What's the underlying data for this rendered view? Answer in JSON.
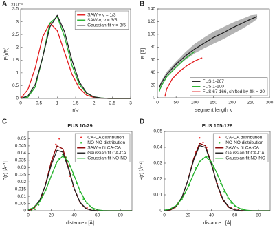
{
  "chart_data": [
    {
      "type": "line",
      "panel_label": "A",
      "x_label": "r/R",
      "y_label": "P(r/R)",
      "y_multiplier": "×10⁻³",
      "xlim": [
        0,
        3
      ],
      "xticks": [
        0,
        0.5,
        1,
        1.5,
        2,
        2.5,
        3
      ],
      "ylim": [
        0,
        3.5
      ],
      "yticks": [
        0,
        0.5,
        1,
        1.5,
        2,
        2.5,
        3,
        3.5
      ],
      "legend": "upper right",
      "x": [
        0,
        0.2,
        0.4,
        0.6,
        0.8,
        1.0,
        1.2,
        1.4,
        1.6,
        1.8,
        2.0,
        2.2,
        2.4,
        2.6,
        2.8,
        3.0
      ],
      "series": [
        {
          "name": "SAW-ν ν = 1/3",
          "color": "#e31a1c",
          "style": "line",
          "values": [
            0,
            0.35,
            1.2,
            2.4,
            2.95,
            2.65,
            1.8,
            0.95,
            0.4,
            0.13,
            0.04,
            0.01,
            0,
            0,
            0,
            0
          ]
        },
        {
          "name": "SAW-ν, ν = 3/5",
          "color": "#22b02a",
          "style": "line",
          "values": [
            0,
            0.05,
            0.45,
            1.6,
            2.95,
            3.2,
            2.4,
            1.3,
            0.55,
            0.2,
            0.06,
            0.02,
            0,
            0,
            0,
            0
          ]
        },
        {
          "name": "Gaussian fit ν = 3/5",
          "color": "#222222",
          "style": "line",
          "values": [
            0,
            0.1,
            0.55,
            1.6,
            2.8,
            3.25,
            2.6,
            1.5,
            0.65,
            0.22,
            0.06,
            0.015,
            0,
            0,
            0,
            0
          ]
        }
      ]
    },
    {
      "type": "line",
      "panel_label": "B",
      "x_label": "segment length k",
      "y_label": "R [Å]",
      "xlim": [
        0,
        300
      ],
      "xticks": [
        0,
        50,
        100,
        150,
        200,
        250,
        300
      ],
      "ylim": [
        0,
        140
      ],
      "yticks": [
        0,
        20,
        40,
        60,
        80,
        100,
        120,
        140
      ],
      "legend": "lower right",
      "band": {
        "color": "#b4b4b4",
        "x": [
          5,
          10,
          25,
          50,
          75,
          100,
          125,
          150,
          175,
          200,
          225,
          250,
          267
        ],
        "lower": [
          14,
          20,
          33,
          49,
          60,
          70,
          78,
          85,
          92,
          100,
          108,
          117,
          124
        ],
        "upper": [
          18,
          26,
          41,
          57,
          72,
          85,
          95,
          104,
          111,
          118,
          124,
          130,
          131
        ]
      },
      "series": [
        {
          "name": "FUS 1-267",
          "color": "#222222",
          "style": "line",
          "x": [
            5,
            10,
            25,
            50,
            75,
            100,
            125,
            150,
            175,
            200,
            225,
            250,
            267
          ],
          "values": [
            16,
            23,
            37,
            53,
            66,
            77,
            86,
            95,
            102,
            110,
            117,
            124,
            128
          ]
        },
        {
          "name": "FUS 1-100",
          "color": "#22b02a",
          "style": "line",
          "x": [
            5,
            10,
            25,
            50,
            75,
            100
          ],
          "values": [
            10,
            18,
            33,
            48,
            62,
            73
          ]
        },
        {
          "name": "FUS 67-166, shifted by Δk = 20",
          "color": "#e31a1c",
          "style": "line",
          "x": [
            20,
            25,
            40,
            60,
            80,
            100,
            120
          ],
          "values": [
            2,
            14,
            30,
            42,
            51,
            58,
            63
          ]
        }
      ]
    },
    {
      "type": "line",
      "panel_label": "C",
      "title": "FUS 10-29",
      "x_label": "distance r [Å]",
      "y_label": "P(r) [Å⁻¹]",
      "xlim": [
        0,
        90
      ],
      "xticks": [
        0,
        20,
        40,
        60,
        80
      ],
      "ylim": [
        0,
        0.055
      ],
      "yticks": [
        0,
        0.005,
        0.01,
        0.015,
        0.02,
        0.025,
        0.03,
        0.035,
        0.04,
        0.045,
        0.05
      ],
      "legend": "upper right",
      "series": [
        {
          "name": "CA-CA distribution",
          "color": "#f03232",
          "style": "markers",
          "x": [
            3,
            6,
            9,
            12,
            15,
            18,
            21,
            24,
            27,
            30,
            33,
            36,
            39,
            42,
            45,
            48,
            51,
            54,
            57,
            60
          ],
          "values": [
            0.001,
            0.003,
            0.006,
            0.011,
            0.019,
            0.027,
            0.036,
            0.046,
            0.05,
            0.041,
            0.035,
            0.024,
            0.017,
            0.011,
            0.006,
            0.003,
            0.002,
            0.001,
            0.0005,
            0
          ]
        },
        {
          "name": "NO-NO distribution",
          "color": "#33c233",
          "style": "markers",
          "x": [
            3,
            6,
            9,
            12,
            15,
            18,
            21,
            24,
            27,
            30,
            33,
            36,
            39,
            42,
            45,
            48,
            51,
            54,
            57,
            60
          ],
          "values": [
            0,
            0.001,
            0.004,
            0.009,
            0.014,
            0.02,
            0.026,
            0.032,
            0.036,
            0.039,
            0.037,
            0.031,
            0.025,
            0.019,
            0.013,
            0.008,
            0.005,
            0.003,
            0.001,
            0.0005
          ]
        },
        {
          "name": "SAW-ν fit CA-CA",
          "color": "#8b0000",
          "style": "line",
          "x": [
            0,
            5,
            10,
            15,
            20,
            25,
            30,
            35,
            40,
            45,
            50,
            55,
            60,
            65,
            70,
            75,
            80,
            85,
            90
          ],
          "values": [
            0,
            0.0015,
            0.0065,
            0.018,
            0.034,
            0.045,
            0.043,
            0.03,
            0.015,
            0.0055,
            0.0015,
            0.0003,
            0,
            0,
            0,
            0,
            0,
            0,
            0
          ]
        },
        {
          "name": "Gaussian fit CA-CA",
          "color": "#222222",
          "style": "line",
          "x": [
            0,
            5,
            10,
            15,
            20,
            25,
            30,
            35,
            40,
            45,
            50,
            55,
            60,
            65,
            70,
            75,
            80,
            85,
            90
          ],
          "values": [
            0.0005,
            0.0022,
            0.0072,
            0.0177,
            0.0318,
            0.0419,
            0.0407,
            0.029,
            0.0152,
            0.0058,
            0.0016,
            0.0003,
            0,
            0,
            0,
            0,
            0,
            0,
            0
          ]
        },
        {
          "name": "Gaussian fit NO-NO",
          "color": "#22b02a",
          "style": "line",
          "x": [
            0,
            5,
            10,
            15,
            20,
            25,
            30,
            35,
            40,
            45,
            50,
            55,
            60,
            65,
            70,
            75,
            80,
            85,
            90
          ],
          "values": [
            0.0006,
            0.0022,
            0.0062,
            0.0137,
            0.0241,
            0.0339,
            0.038,
            0.0339,
            0.0241,
            0.0137,
            0.0062,
            0.0022,
            0.0006,
            0.0001,
            0,
            0,
            0,
            0,
            0
          ]
        }
      ]
    },
    {
      "type": "line",
      "panel_label": "D",
      "title": "FUS 105-128",
      "x_label": "distance r [Å]",
      "y_label": "P(r) [Å⁻¹]",
      "xlim": [
        0,
        90
      ],
      "xticks": [
        0,
        20,
        40,
        60,
        80
      ],
      "ylim": [
        0,
        0.05
      ],
      "yticks": [
        0,
        0.01,
        0.02,
        0.03,
        0.04,
        0.05
      ],
      "legend": "upper right",
      "series": [
        {
          "name": "CA-CA distribution",
          "color": "#f03232",
          "style": "markers",
          "x": [
            6,
            9,
            12,
            15,
            18,
            21,
            24,
            27,
            30,
            33,
            36,
            39,
            42,
            45,
            48,
            51,
            54,
            57,
            60,
            63,
            66
          ],
          "values": [
            0.001,
            0.002,
            0.005,
            0.008,
            0.014,
            0.022,
            0.03,
            0.037,
            0.046,
            0.043,
            0.04,
            0.032,
            0.025,
            0.017,
            0.01,
            0.006,
            0.003,
            0.002,
            0.001,
            0.0005,
            0
          ]
        },
        {
          "name": "NO-NO distribution",
          "color": "#33c233",
          "style": "markers",
          "x": [
            6,
            9,
            12,
            15,
            18,
            21,
            24,
            27,
            30,
            33,
            36,
            39,
            42,
            45,
            48,
            51,
            54,
            57,
            60,
            63,
            66
          ],
          "values": [
            0.001,
            0.002,
            0.004,
            0.007,
            0.011,
            0.016,
            0.022,
            0.027,
            0.031,
            0.033,
            0.034,
            0.031,
            0.027,
            0.022,
            0.017,
            0.012,
            0.008,
            0.005,
            0.003,
            0.002,
            0.001
          ]
        },
        {
          "name": "SAW-ν fit CA-CA",
          "color": "#8b0000",
          "style": "line",
          "x": [
            0,
            5,
            10,
            15,
            20,
            25,
            30,
            35,
            40,
            45,
            50,
            55,
            60,
            65,
            70,
            75,
            80,
            85,
            90
          ],
          "values": [
            0,
            0.0004,
            0.0025,
            0.008,
            0.019,
            0.033,
            0.0425,
            0.041,
            0.03,
            0.016,
            0.0065,
            0.002,
            0.0005,
            0.0001,
            0,
            0,
            0,
            0,
            0
          ]
        },
        {
          "name": "Gaussian fit CA-CA",
          "color": "#222222",
          "style": "line",
          "x": [
            0,
            5,
            10,
            15,
            20,
            25,
            30,
            35,
            40,
            45,
            50,
            55,
            60,
            65,
            70,
            75,
            80,
            85,
            90
          ],
          "values": [
            0.0001,
            0.0007,
            0.0029,
            0.0085,
            0.0189,
            0.032,
            0.0411,
            0.04,
            0.0295,
            0.0165,
            0.007,
            0.0022,
            0.0005,
            0.0001,
            0,
            0,
            0,
            0,
            0
          ]
        },
        {
          "name": "Gaussian fit NO-NO",
          "color": "#22b02a",
          "style": "line",
          "x": [
            0,
            5,
            10,
            15,
            20,
            25,
            30,
            35,
            40,
            45,
            50,
            55,
            60,
            65,
            70,
            75,
            80,
            85,
            90
          ],
          "values": [
            0.0003,
            0.0011,
            0.0032,
            0.0075,
            0.0145,
            0.0233,
            0.0309,
            0.034,
            0.0309,
            0.0233,
            0.0145,
            0.0075,
            0.0032,
            0.0011,
            0.0003,
            0,
            0,
            0,
            0
          ]
        }
      ]
    }
  ]
}
